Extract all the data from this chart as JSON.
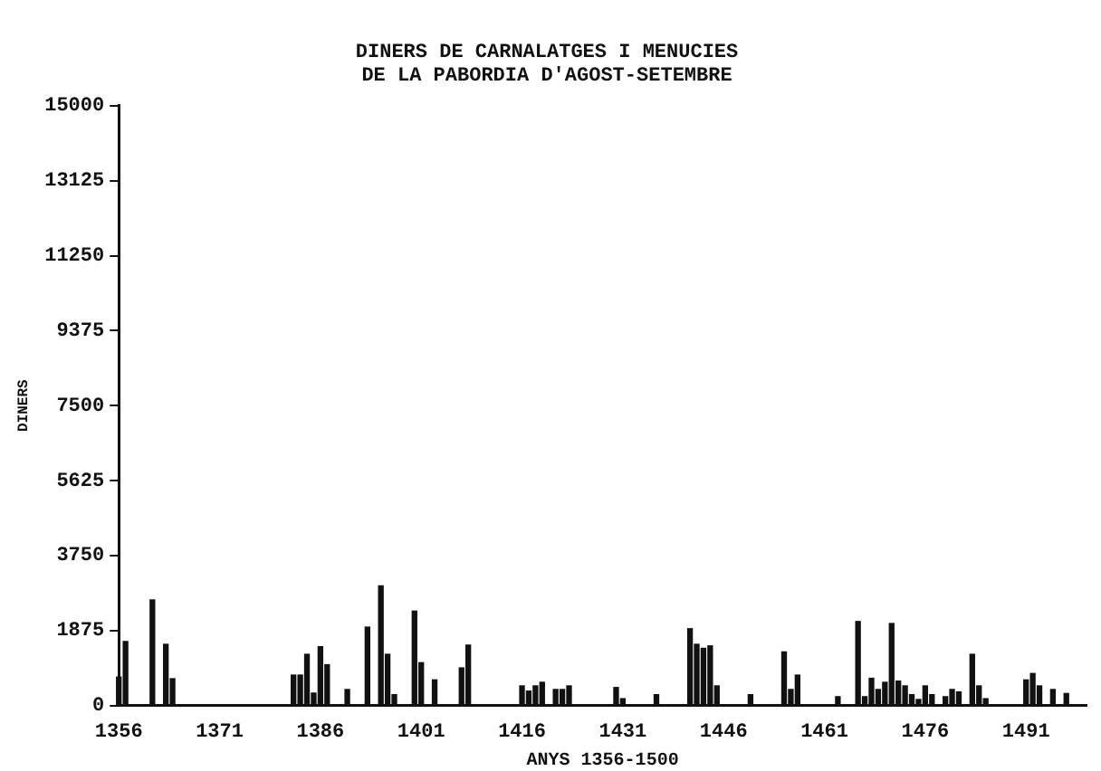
{
  "chart_data": {
    "type": "bar",
    "title": "DINERS DE CARNALATGES I MENUCIES\nDE LA PABORDIA D'AGOST-SETEMBRE",
    "xlabel": "ANYS 1356-1500",
    "ylabel": "DINERS",
    "x": [
      1356,
      1357,
      1361,
      1363,
      1364,
      1382,
      1383,
      1384,
      1385,
      1386,
      1387,
      1390,
      1393,
      1395,
      1396,
      1397,
      1400,
      1401,
      1403,
      1407,
      1408,
      1416,
      1417,
      1418,
      1419,
      1421,
      1422,
      1423,
      1430,
      1431,
      1436,
      1441,
      1442,
      1443,
      1444,
      1445,
      1450,
      1455,
      1456,
      1457,
      1463,
      1466,
      1467,
      1468,
      1469,
      1470,
      1471,
      1472,
      1473,
      1474,
      1475,
      1476,
      1477,
      1479,
      1480,
      1481,
      1483,
      1484,
      1485,
      1491,
      1492,
      1493,
      1495,
      1497
    ],
    "values": [
      710,
      1600,
      2640,
      1530,
      670,
      760,
      760,
      1280,
      310,
      1470,
      1020,
      400,
      1960,
      2990,
      1280,
      270,
      2360,
      1070,
      640,
      940,
      1510,
      490,
      360,
      490,
      580,
      400,
      400,
      490,
      450,
      170,
      270,
      1920,
      1530,
      1430,
      1490,
      490,
      270,
      1340,
      400,
      760,
      220,
      2100,
      220,
      680,
      400,
      580,
      2050,
      610,
      490,
      270,
      150,
      490,
      270,
      220,
      400,
      340,
      1280,
      490,
      170,
      640,
      800,
      490,
      400,
      300
    ],
    "color": "#111111",
    "xlim": [
      1356,
      1500
    ],
    "xticks": [
      1356,
      1371,
      1386,
      1401,
      1416,
      1431,
      1446,
      1461,
      1476,
      1491
    ],
    "ylim": [
      0,
      15000
    ],
    "yticks": [
      0,
      1875,
      3750,
      5625,
      7500,
      9375,
      11250,
      13125,
      15000
    ],
    "grid": false,
    "legend": false
  }
}
